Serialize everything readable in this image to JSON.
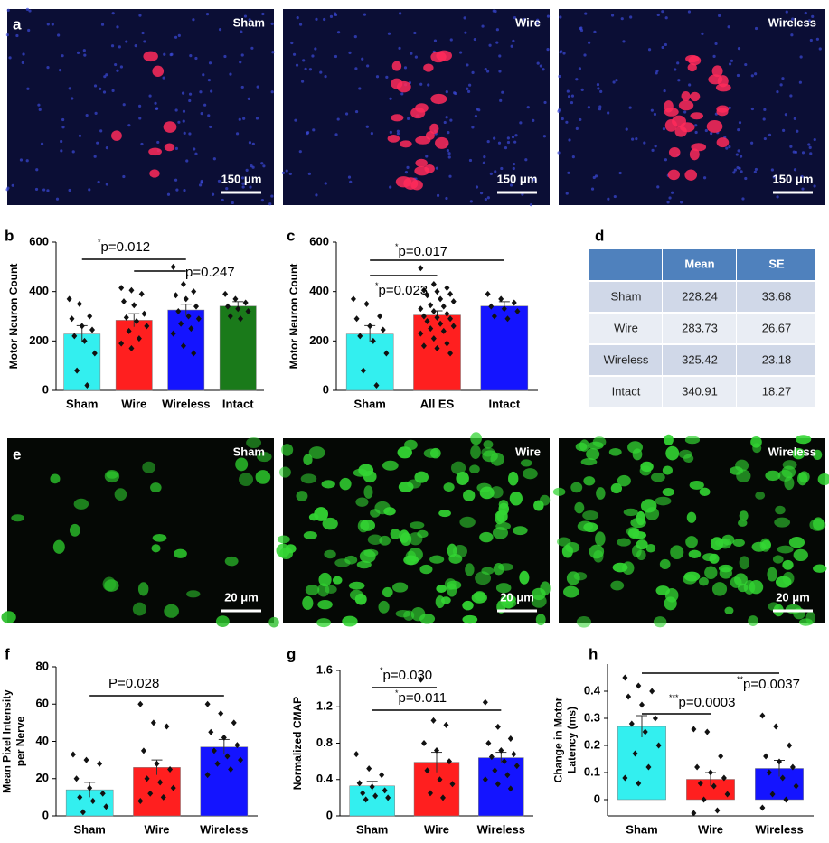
{
  "panel_labels": [
    "a",
    "b",
    "c",
    "d",
    "e",
    "f",
    "g",
    "h"
  ],
  "images_top": [
    {
      "label": "Sham",
      "scale_bar": "150 μm"
    },
    {
      "label": "Wire",
      "scale_bar": "150 μm"
    },
    {
      "label": "Wireless",
      "scale_bar": "150 μm"
    }
  ],
  "images_bottom": [
    {
      "label": "Sham",
      "scale_bar": "20 μm"
    },
    {
      "label": "Wire",
      "scale_bar": "20 μm"
    },
    {
      "label": "Wireless",
      "scale_bar": "20 μm"
    }
  ],
  "table": {
    "header": [
      "",
      "Mean",
      "SE"
    ],
    "rows": [
      [
        "Sham",
        228.24,
        33.68
      ],
      [
        "Wire",
        283.73,
        26.67
      ],
      [
        "Wireless",
        325.42,
        23.18
      ],
      [
        "Intact",
        340.91,
        18.27
      ]
    ]
  },
  "chart_data": [
    {
      "type": "bar",
      "ylabel": "Motor Neuron Count",
      "categories": [
        "Sham",
        "Wire",
        "Wireless",
        "Intact"
      ],
      "values": [
        228.24,
        283.73,
        325.42,
        340.91
      ],
      "errors": [
        33.68,
        26.67,
        23.18,
        18.27
      ],
      "colors": [
        "#33efef",
        "#ff1f1f",
        "#1414ff",
        "#1a7a1a"
      ],
      "points": [
        [
          370,
          350,
          300,
          290,
          260,
          245,
          220,
          200,
          150,
          80,
          20
        ],
        [
          415,
          405,
          390,
          360,
          345,
          310,
          295,
          280,
          260,
          240,
          210,
          190,
          170
        ],
        [
          500,
          430,
          400,
          385,
          370,
          340,
          320,
          300,
          290,
          270,
          250,
          230,
          180,
          150
        ],
        [
          390,
          370,
          355,
          340,
          330,
          320,
          300,
          290
        ]
      ],
      "ylim": [
        0,
        600
      ],
      "yticks": [
        0,
        200,
        400,
        600
      ],
      "annotations": [
        {
          "sig": "*",
          "text": "p=0.012"
        },
        {
          "text": "p=0.247"
        }
      ]
    },
    {
      "type": "bar",
      "ylabel": "Motor Neuron Count",
      "categories": [
        "Sham",
        "All ES",
        "Intact"
      ],
      "values": [
        228,
        305,
        341
      ],
      "errors": [
        34,
        17,
        18
      ],
      "colors": [
        "#33efef",
        "#ff1f1f",
        "#1414ff"
      ],
      "points": [
        [
          370,
          350,
          300,
          290,
          260,
          245,
          220,
          200,
          150,
          80,
          20
        ],
        [
          495,
          430,
          415,
          405,
          400,
          390,
          385,
          370,
          360,
          345,
          340,
          330,
          320,
          310,
          300,
          295,
          290,
          280,
          270,
          260,
          250,
          240,
          230,
          210,
          190,
          180,
          170,
          150
        ],
        [
          390,
          370,
          355,
          340,
          330,
          320,
          300,
          290
        ]
      ],
      "ylim": [
        0,
        600
      ],
      "yticks": [
        0,
        200,
        400,
        600
      ],
      "annotations": [
        {
          "sig": "*",
          "text": "p=0.017"
        },
        {
          "sig": "*",
          "text": "p=0.023"
        }
      ]
    },
    {
      "type": "bar",
      "ylabel": [
        "Mean Pixel Intensity",
        "per Nerve"
      ],
      "categories": [
        "Sham",
        "Wire",
        "Wireless"
      ],
      "values": [
        14,
        26,
        37
      ],
      "errors": [
        4,
        4,
        4
      ],
      "colors": [
        "#33efef",
        "#ff1f1f",
        "#1414ff"
      ],
      "points": [
        [
          33,
          30,
          28,
          20,
          15,
          12,
          10,
          8,
          5,
          2
        ],
        [
          60,
          50,
          48,
          35,
          28,
          25,
          20,
          18,
          15,
          12,
          10,
          8
        ],
        [
          60,
          55,
          50,
          45,
          42,
          38,
          35,
          32,
          30,
          28,
          25,
          22
        ]
      ],
      "ylim": [
        0,
        80
      ],
      "yticks": [
        0,
        20,
        40,
        60,
        80
      ],
      "annotations": [
        {
          "text": "P=0.028"
        }
      ]
    },
    {
      "type": "bar",
      "ylabel": "Normalized CMAP",
      "categories": [
        "Sham",
        "Wire",
        "Wireless"
      ],
      "values": [
        0.33,
        0.59,
        0.64
      ],
      "errors": [
        0.05,
        0.11,
        0.06
      ],
      "colors": [
        "#33efef",
        "#ff1f1f",
        "#1414ff"
      ],
      "points": [
        [
          0.68,
          0.52,
          0.45,
          0.36,
          0.32,
          0.28,
          0.25,
          0.22,
          0.2,
          0.18
        ],
        [
          1.5,
          1.05,
          1.0,
          0.8,
          0.72,
          0.6,
          0.5,
          0.4,
          0.35,
          0.25,
          0.2
        ],
        [
          1.25,
          0.98,
          0.85,
          0.8,
          0.72,
          0.68,
          0.65,
          0.6,
          0.55,
          0.5,
          0.45,
          0.4,
          0.35,
          0.3
        ]
      ],
      "ylim": [
        0,
        1.6
      ],
      "yticks": [
        0,
        0.4,
        0.8,
        1.2,
        1.6
      ],
      "annotations": [
        {
          "sig": "*",
          "text": "p=0.030"
        },
        {
          "sig": "*",
          "text": "p=0.011"
        }
      ]
    },
    {
      "type": "bar",
      "ylabel": [
        "Change in Motor",
        "Latency (ms)"
      ],
      "categories": [
        "Sham",
        "Wire",
        "Wireless"
      ],
      "values": [
        0.27,
        0.075,
        0.115
      ],
      "errors": [
        0.04,
        0.025,
        0.03
      ],
      "colors": [
        "#33efef",
        "#ff1f1f",
        "#1414ff"
      ],
      "points": [
        [
          0.45,
          0.42,
          0.4,
          0.38,
          0.35,
          0.3,
          0.28,
          0.25,
          0.2,
          0.17,
          0.12,
          0.08,
          0.06
        ],
        [
          0.26,
          0.25,
          0.16,
          0.12,
          0.1,
          0.08,
          0.06,
          0.05,
          0.02,
          0,
          -0.04,
          -0.05
        ],
        [
          0.31,
          0.27,
          0.2,
          0.16,
          0.14,
          0.12,
          0.1,
          0.08,
          0.05,
          0.02,
          0,
          -0.03
        ]
      ],
      "ylim": [
        -0.06,
        0.5
      ],
      "yticks": [
        0,
        0.1,
        0.2,
        0.3,
        0.4
      ],
      "annotations": [
        {
          "sig": "***",
          "text": "p=0.0003"
        },
        {
          "sig": "**",
          "text": "p=0.0037"
        }
      ]
    }
  ]
}
